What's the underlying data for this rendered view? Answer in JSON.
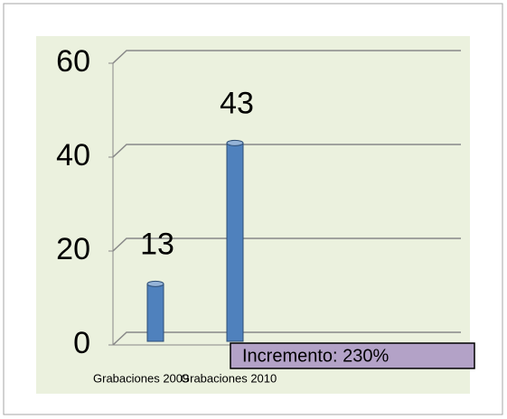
{
  "chart_data": {
    "type": "bar",
    "categories": [
      "Grabaciones 2009",
      "Grabaciones 2010"
    ],
    "values": [
      13,
      43
    ],
    "color": "#4f81bd",
    "ylim": [
      0,
      60
    ],
    "yticks": [
      0,
      20,
      40,
      60
    ],
    "grid": true,
    "annotation": "Incremento:  230%"
  }
}
